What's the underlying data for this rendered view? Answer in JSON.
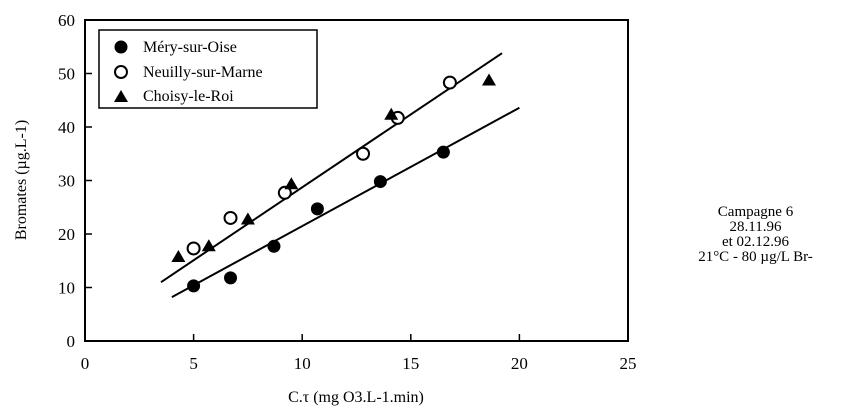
{
  "chart_data": {
    "type": "scatter",
    "xlabel": "C.τ (mg O3.L-1.min)",
    "ylabel": "Bromates (µg.L-1)",
    "xlim": [
      0,
      25
    ],
    "ylim": [
      0,
      60
    ],
    "x_ticks": [
      "0",
      "5",
      "10",
      "15",
      "20",
      "25"
    ],
    "y_ticks": [
      "0",
      "10",
      "20",
      "30",
      "40",
      "50",
      "60"
    ],
    "grid": false,
    "legend_position": "top-left",
    "series": [
      {
        "name": "Méry-sur-Oise",
        "marker": "filled-circle",
        "points": [
          [
            5.0,
            10.3
          ],
          [
            6.7,
            11.8
          ],
          [
            8.7,
            17.7
          ],
          [
            10.7,
            24.7
          ],
          [
            13.6,
            29.8
          ],
          [
            16.5,
            35.3
          ]
        ]
      },
      {
        "name": "Neuilly-sur-Marne",
        "marker": "open-circle",
        "points": [
          [
            5.0,
            17.3
          ],
          [
            6.7,
            23.0
          ],
          [
            9.2,
            27.7
          ],
          [
            12.8,
            35.0
          ],
          [
            14.4,
            41.7
          ],
          [
            16.8,
            48.3
          ]
        ]
      },
      {
        "name": "Choisy-le-Roi",
        "marker": "filled-triangle",
        "points": [
          [
            4.3,
            15.7
          ],
          [
            5.7,
            17.7
          ],
          [
            7.5,
            22.7
          ],
          [
            9.5,
            29.3
          ],
          [
            14.1,
            42.3
          ],
          [
            18.6,
            48.7
          ]
        ]
      }
    ],
    "fit_lines": [
      {
        "from": [
          3.5,
          11.0
        ],
        "to": [
          19.2,
          53.8
        ]
      },
      {
        "from": [
          4.0,
          8.2
        ],
        "to": [
          20.0,
          43.6
        ]
      }
    ]
  },
  "annotation": {
    "lines": [
      "Campagne 6",
      "28.11.96",
      "et  02.12.96",
      "21°C - 80 µg/L Br-"
    ]
  }
}
